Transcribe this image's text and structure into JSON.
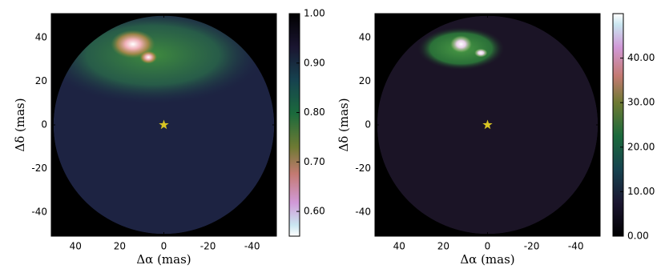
{
  "chart_data": [
    {
      "type": "image",
      "xlabel": "Δα (mas)",
      "ylabel": "Δδ (mas)",
      "xlim": [
        51,
        -51
      ],
      "ylim": [
        -51,
        51
      ],
      "xticks": [
        40,
        20,
        0,
        -20,
        -40
      ],
      "yticks": [
        -40,
        -20,
        0,
        20,
        40
      ],
      "cmap": "cubehelix_r",
      "colorbar": {
        "lim": [
          0.55,
          1.0
        ],
        "ticks": [
          {
            "value": 0.6,
            "label": "0.60"
          },
          {
            "value": 0.7,
            "label": "0.70"
          },
          {
            "value": 0.8,
            "label": "0.80"
          },
          {
            "value": 0.9,
            "label": "0.90"
          },
          {
            "value": 1,
            "label": "1.00"
          }
        ]
      },
      "marker": {
        "x": 0,
        "y": 0,
        "color": "#d8c423"
      }
    },
    {
      "type": "image",
      "xlabel": "Δα (mas)",
      "ylabel": "Δδ (mas)",
      "xlim": [
        51,
        -51
      ],
      "ylim": [
        -51,
        51
      ],
      "xticks": [
        40,
        20,
        0,
        -20,
        -40
      ],
      "yticks": [
        -40,
        -20,
        0,
        20,
        40
      ],
      "cmap": "cubehelix",
      "colorbar": {
        "lim": [
          0,
          50
        ],
        "ticks": [
          {
            "value": 0,
            "label": "0.00"
          },
          {
            "value": 10,
            "label": "10.00"
          },
          {
            "value": 20,
            "label": "20.00"
          },
          {
            "value": 30,
            "label": "30.00"
          },
          {
            "value": 40,
            "label": "40.00"
          }
        ]
      },
      "marker": {
        "x": 0,
        "y": 0,
        "color": "#d8c423"
      }
    }
  ]
}
